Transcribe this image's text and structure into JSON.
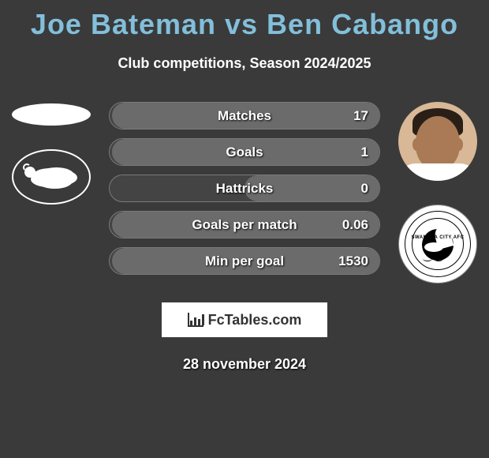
{
  "title": "Joe Bateman vs Ben Cabango",
  "subtitle": "Club competitions, Season 2024/2025",
  "colors": {
    "background": "#3a3a3a",
    "title_color": "#82bfdb",
    "text_color": "#ffffff",
    "bar_border": "#7a7a7a",
    "bar_bg": "#444444",
    "bar_fill_right": "#6b6b6b"
  },
  "left": {
    "player_name": "Joe Bateman",
    "club": "Derby County",
    "badge_icon": "derby-ram"
  },
  "right": {
    "player_name": "Ben Cabango",
    "club": "Swansea City",
    "badge_icon": "swansea-swan",
    "badge_ring_text": "SWANSEA CITY AFC"
  },
  "stats": [
    {
      "label": "Matches",
      "left_value": "",
      "right_value": "17",
      "right_fill_pct": 99
    },
    {
      "label": "Goals",
      "left_value": "",
      "right_value": "1",
      "right_fill_pct": 99
    },
    {
      "label": "Hattricks",
      "left_value": "",
      "right_value": "0",
      "right_fill_pct": 50
    },
    {
      "label": "Goals per match",
      "left_value": "",
      "right_value": "0.06",
      "right_fill_pct": 99
    },
    {
      "label": "Min per goal",
      "left_value": "",
      "right_value": "1530",
      "right_fill_pct": 99
    }
  ],
  "logo_text": "FcTables.com",
  "date_text": "28 november 2024"
}
